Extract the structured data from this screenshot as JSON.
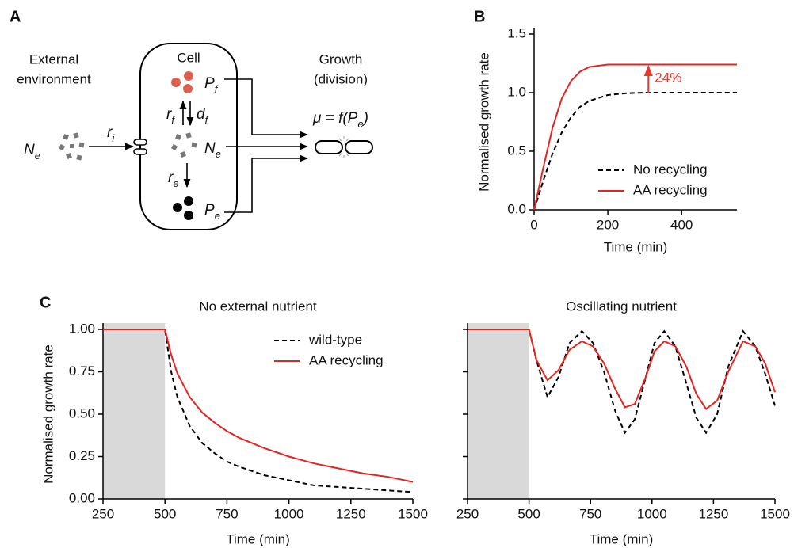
{
  "diagram": {
    "panel_label": "A",
    "environment": [
      "External",
      "environment"
    ],
    "cell": "Cell",
    "growth": [
      "Growth",
      "(division)"
    ],
    "formula": {
      "before": "μ = f(P",
      "sub": "e",
      "after": ")"
    },
    "symbols": [
      {
        "text": "N",
        "sub": "e"
      },
      {
        "text": "r",
        "sub": "i"
      },
      {
        "text": "P",
        "sub": "f"
      },
      {
        "text": "r",
        "sub": "f"
      },
      {
        "text": "d",
        "sub": "f"
      },
      {
        "text": "N",
        "sub": "e"
      },
      {
        "text": "r",
        "sub": "e"
      },
      {
        "text": "P",
        "sub": "e"
      }
    ]
  },
  "chart_data": [
    {
      "type": "line",
      "panel_label": "B",
      "ylabel": "Normalised growth rate",
      "xlabel": "Time (min)",
      "x": [
        0,
        25,
        50,
        75,
        100,
        125,
        150,
        200,
        250,
        300,
        350,
        400,
        450,
        500,
        550
      ],
      "series": [
        {
          "name": "No recycling",
          "color": "#000000",
          "dash": true,
          "values": [
            0,
            0.25,
            0.48,
            0.66,
            0.79,
            0.88,
            0.93,
            0.98,
            0.995,
            1,
            1,
            1,
            1,
            1,
            1
          ]
        },
        {
          "name": "AA recycling",
          "color": "#e8231f",
          "dash": false,
          "values": [
            0,
            0.36,
            0.7,
            0.95,
            1.1,
            1.18,
            1.22,
            1.24,
            1.24,
            1.24,
            1.24,
            1.24,
            1.24,
            1.24,
            1.24
          ]
        }
      ],
      "xlim": [
        0,
        550
      ],
      "xticks": [
        0,
        200,
        400
      ],
      "ylim": [
        0,
        1.5
      ],
      "yticks": [
        {
          "value": 0,
          "label": "0.0"
        },
        {
          "value": 0.5,
          "label": "0.5"
        },
        {
          "value": 1,
          "label": "1.0"
        },
        {
          "value": 1.5,
          "label": "1.5"
        }
      ],
      "legend": "lower right",
      "annotation": {
        "text": "24%",
        "x": 310,
        "y_from": 1,
        "y_to": 1.24,
        "color": "#e8392f"
      }
    },
    {
      "type": "line",
      "panel_label": "C",
      "title": "No external nutrient",
      "ylabel": "Normalised growth rate",
      "xlabel": "Time (min)",
      "x": [
        250,
        500,
        525,
        550,
        600,
        650,
        700,
        750,
        800,
        900,
        1000,
        1100,
        1200,
        1300,
        1400,
        1500
      ],
      "series": [
        {
          "name": "wild-type",
          "color": "#000000",
          "dash": true,
          "values": [
            1,
            1,
            0.75,
            0.6,
            0.43,
            0.33,
            0.27,
            0.22,
            0.19,
            0.14,
            0.11,
            0.08,
            0.07,
            0.06,
            0.05,
            0.04
          ]
        },
        {
          "name": "AA recycling",
          "color": "#e8231f",
          "dash": false,
          "values": [
            1,
            1,
            0.85,
            0.74,
            0.6,
            0.51,
            0.45,
            0.4,
            0.36,
            0.3,
            0.25,
            0.21,
            0.18,
            0.15,
            0.13,
            0.1
          ]
        }
      ],
      "xlim": [
        250,
        1500
      ],
      "xticks": [
        250,
        500,
        750,
        1000,
        1250,
        1500
      ],
      "ylim": [
        0,
        1
      ],
      "yticks": [
        {
          "value": 0,
          "label": "0.00"
        },
        {
          "value": 0.25,
          "label": "0.25"
        },
        {
          "value": 0.5,
          "label": "0.50"
        },
        {
          "value": 0.75,
          "label": "0.75"
        },
        {
          "value": 1,
          "label": "1.00"
        }
      ],
      "legend": "upper right",
      "shaded_xrange": [
        250,
        500
      ]
    },
    {
      "type": "line",
      "title": "Oscillating nutrient",
      "xlabel": "Time (min)",
      "x": [
        250,
        500,
        530,
        575,
        620,
        665,
        715,
        760,
        805,
        850,
        890,
        930,
        975,
        1010,
        1050,
        1095,
        1140,
        1180,
        1220,
        1265,
        1310,
        1370,
        1420,
        1460,
        1500
      ],
      "series": [
        {
          "color": "#000000",
          "dash": true,
          "values": [
            1,
            1,
            0.82,
            0.6,
            0.72,
            0.92,
            0.99,
            0.92,
            0.75,
            0.52,
            0.39,
            0.47,
            0.72,
            0.92,
            0.99,
            0.9,
            0.68,
            0.48,
            0.39,
            0.5,
            0.78,
            0.99,
            0.9,
            0.74,
            0.55
          ]
        },
        {
          "color": "#e8231f",
          "dash": false,
          "values": [
            1,
            1,
            0.82,
            0.7,
            0.76,
            0.88,
            0.93,
            0.9,
            0.8,
            0.65,
            0.54,
            0.56,
            0.72,
            0.87,
            0.93,
            0.9,
            0.78,
            0.62,
            0.53,
            0.58,
            0.75,
            0.93,
            0.9,
            0.8,
            0.63
          ]
        }
      ],
      "xlim": [
        250,
        1500
      ],
      "xticks": [
        250,
        500,
        750,
        1000,
        1250,
        1500
      ],
      "ylim": [
        0,
        1
      ],
      "yticks": [
        0,
        0.25,
        0.5,
        0.75,
        1
      ],
      "show_ytick_labels": false,
      "shaded_xrange": [
        250,
        500
      ]
    }
  ]
}
